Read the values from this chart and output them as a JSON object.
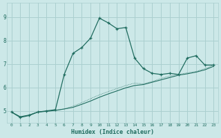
{
  "title": "",
  "xlabel": "Humidex (Indice chaleur)",
  "ylabel": "",
  "bg_color": "#cce8e8",
  "line_color": "#1e6b5e",
  "grid_color": "#aacfcf",
  "xlim": [
    -0.5,
    23.5
  ],
  "ylim": [
    4.5,
    9.6
  ],
  "xticks": [
    0,
    1,
    2,
    3,
    4,
    5,
    6,
    7,
    8,
    9,
    10,
    11,
    12,
    13,
    14,
    15,
    16,
    17,
    18,
    19,
    20,
    21,
    22,
    23
  ],
  "yticks": [
    5,
    6,
    7,
    8,
    9
  ],
  "curve1_x": [
    0,
    1,
    2,
    3,
    4,
    5,
    6,
    7,
    8,
    9,
    10,
    11,
    12,
    13,
    14,
    15,
    16,
    17,
    18,
    19,
    20,
    21,
    22,
    23
  ],
  "curve1_y": [
    4.95,
    4.72,
    4.8,
    4.95,
    5.0,
    5.05,
    6.55,
    7.45,
    7.7,
    8.1,
    8.95,
    8.75,
    8.5,
    8.55,
    7.25,
    6.8,
    6.6,
    6.55,
    6.6,
    6.55,
    7.25,
    7.35,
    6.95,
    6.95
  ],
  "curve2_x": [
    0,
    1,
    2,
    3,
    4,
    5,
    6,
    7,
    8,
    9,
    10,
    11,
    12,
    13,
    14,
    15,
    16,
    17,
    18,
    19,
    20,
    21,
    22,
    23
  ],
  "curve2_y": [
    4.95,
    4.75,
    4.82,
    4.95,
    4.98,
    5.02,
    5.08,
    5.15,
    5.28,
    5.42,
    5.58,
    5.72,
    5.85,
    5.98,
    6.08,
    6.12,
    6.22,
    6.32,
    6.42,
    6.52,
    6.58,
    6.65,
    6.75,
    6.9
  ],
  "curve3_x": [
    0,
    1,
    2,
    3,
    4,
    5,
    6,
    7,
    8,
    9,
    10,
    11,
    12,
    13,
    14,
    15,
    16,
    17,
    18,
    19,
    20,
    21,
    22,
    23
  ],
  "curve3_y": [
    4.95,
    4.75,
    4.82,
    4.95,
    4.98,
    5.02,
    5.08,
    5.2,
    5.35,
    5.52,
    5.68,
    5.82,
    5.95,
    6.08,
    6.18,
    6.15,
    6.25,
    6.38,
    6.48,
    6.55,
    6.62,
    6.68,
    6.8,
    6.95
  ]
}
